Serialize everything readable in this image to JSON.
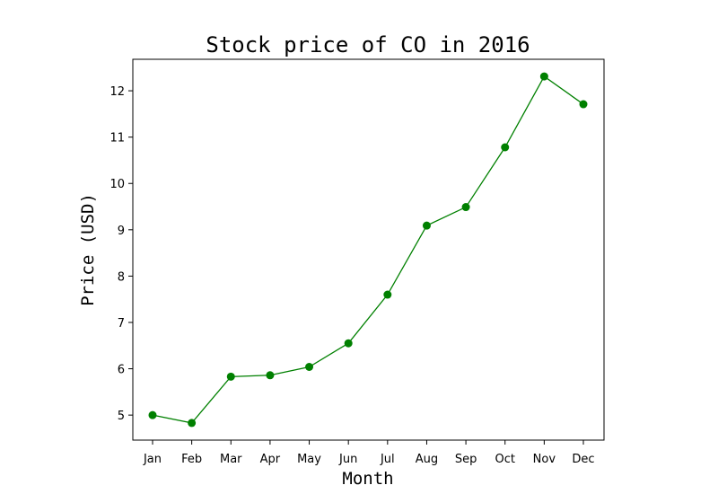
{
  "chart_data": {
    "type": "line",
    "title": "Stock price of CO in 2016",
    "xlabel": "Month",
    "ylabel": "Price (USD)",
    "categories": [
      "Jan",
      "Feb",
      "Mar",
      "Apr",
      "May",
      "Jun",
      "Jul",
      "Aug",
      "Sep",
      "Oct",
      "Nov",
      "Dec"
    ],
    "series": [
      {
        "values": [
          5.0,
          4.83,
          5.83,
          5.86,
          6.04,
          6.55,
          7.6,
          9.09,
          9.49,
          10.78,
          12.31,
          11.71
        ],
        "color": "#008000",
        "marker": "circle"
      }
    ],
    "yticks": [
      5,
      6,
      7,
      8,
      9,
      10,
      11,
      12
    ],
    "ylim": [
      4.46,
      12.68
    ],
    "grid": false,
    "legend": "none"
  }
}
